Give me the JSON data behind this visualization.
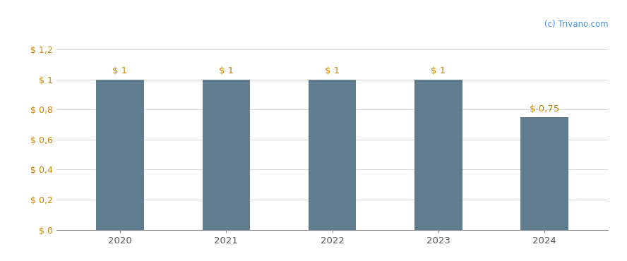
{
  "categories": [
    "2020",
    "2021",
    "2022",
    "2023",
    "2024"
  ],
  "values": [
    1.0,
    1.0,
    1.0,
    1.0,
    0.75
  ],
  "bar_color": "#5f7d8e",
  "bar_labels": [
    "$ 1",
    "$ 1",
    "$ 1",
    "$ 1",
    "$ 0,75"
  ],
  "bar_label_color": "#c8860a",
  "yticks": [
    0,
    0.2,
    0.4,
    0.6,
    0.8,
    1.0,
    1.2
  ],
  "ytick_labels": [
    "$ 0",
    "$ 0,2",
    "$ 0,4",
    "$ 0,6",
    "$ 0,8",
    "$ 1",
    "$ 1,2"
  ],
  "tick_label_color": "#c8860a",
  "ylim": [
    0,
    1.32
  ],
  "grid_color": "#d8d8d8",
  "background_color": "#ffffff",
  "watermark": "(c) Trivano.com",
  "watermark_color": "#4a90d9",
  "bar_width": 0.45,
  "figsize": [
    8.88,
    3.7
  ],
  "dpi": 100
}
